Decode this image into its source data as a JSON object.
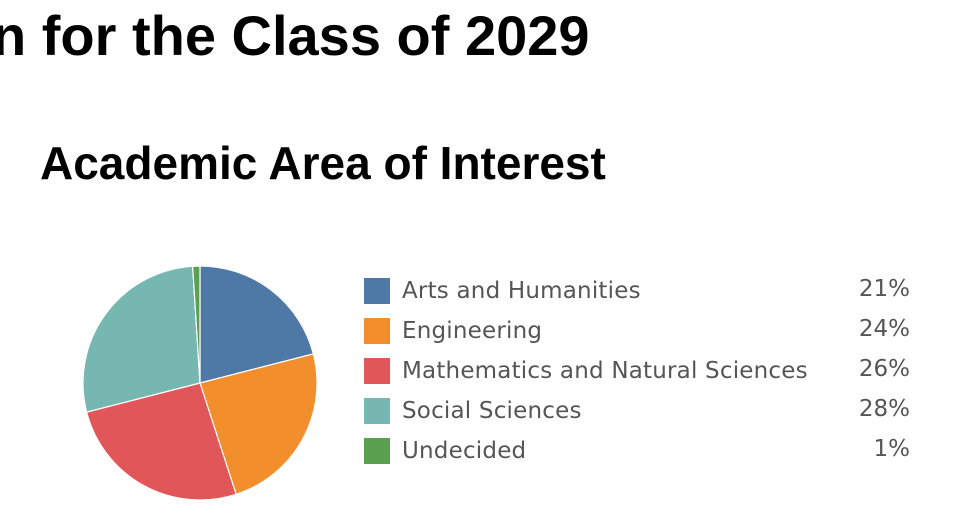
{
  "page": {
    "title": "n for the Class of 2029"
  },
  "chart_data": {
    "type": "pie",
    "title": "Academic Area of Interest",
    "categories": [
      "Arts and Humanities",
      "Engineering",
      "Mathematics and Natural Sciences",
      "Social Sciences",
      "Undecided"
    ],
    "values": [
      21,
      24,
      26,
      28,
      1
    ],
    "value_labels": [
      "21%",
      "24%",
      "26%",
      "28%",
      "1%"
    ],
    "colors": [
      "#4e79a7",
      "#f28e2b",
      "#e15759",
      "#76b7b2",
      "#59a14f"
    ],
    "legend_position": "right"
  }
}
